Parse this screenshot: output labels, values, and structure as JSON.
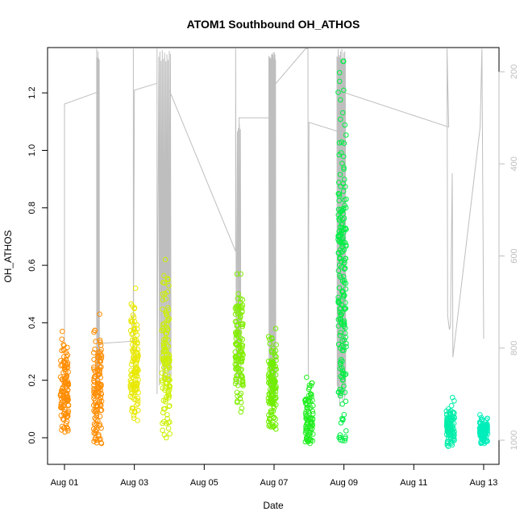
{
  "chart_data": {
    "type": "scatter",
    "title": "ATOM1 Southbound OH_ATHOS",
    "xlabel": "Date",
    "ylabel": "OH_ATHOS",
    "xlim": [
      "Aug 01",
      "Aug 13"
    ],
    "ylim": [
      -0.09,
      1.35
    ],
    "x_ticks": [
      "Aug 01",
      "Aug 03",
      "Aug 05",
      "Aug 07",
      "Aug 09",
      "Aug 11",
      "Aug 13"
    ],
    "y_ticks": [
      "0.0",
      "0.2",
      "0.4",
      "0.6",
      "0.8",
      "1.0",
      "1.2"
    ],
    "y_tick_values": [
      0.0,
      0.2,
      0.4,
      0.6,
      0.8,
      1.0,
      1.2
    ],
    "right_axis": {
      "ticks": [
        "200",
        "400",
        "600",
        "800",
        "1000"
      ],
      "tick_values": [
        200,
        400,
        600,
        800,
        1000
      ],
      "range": [
        150,
        1035
      ],
      "reversed": true,
      "color": "#bebebe"
    },
    "grid": false,
    "legend": "none",
    "series": [
      {
        "day": 1.0,
        "color": "#ff8c00",
        "min": 0.02,
        "max": 0.37
      },
      {
        "day": 1.95,
        "color": "#ff8c00",
        "min": -0.02,
        "max": 0.43
      },
      {
        "day": 3.0,
        "color": "#e8e800",
        "min": 0.06,
        "max": 0.52
      },
      {
        "day": 3.9,
        "color": "#ccf000",
        "min": 0.0,
        "max": 0.62
      },
      {
        "day": 6.0,
        "color": "#80ee00",
        "min": 0.09,
        "max": 0.57
      },
      {
        "day": 6.95,
        "color": "#70ee00",
        "min": 0.03,
        "max": 0.38
      },
      {
        "day": 8.0,
        "color": "#22ee22",
        "min": -0.02,
        "max": 0.21
      },
      {
        "day": 8.95,
        "color": "#00ee44",
        "min": -0.01,
        "max": 1.31
      },
      {
        "day": 12.05,
        "color": "#00eeaa",
        "min": -0.03,
        "max": 0.14
      },
      {
        "day": 13.0,
        "color": "#00eebb",
        "min": -0.02,
        "max": 0.08
      }
    ],
    "altitude_line_color": "#bebebe"
  }
}
